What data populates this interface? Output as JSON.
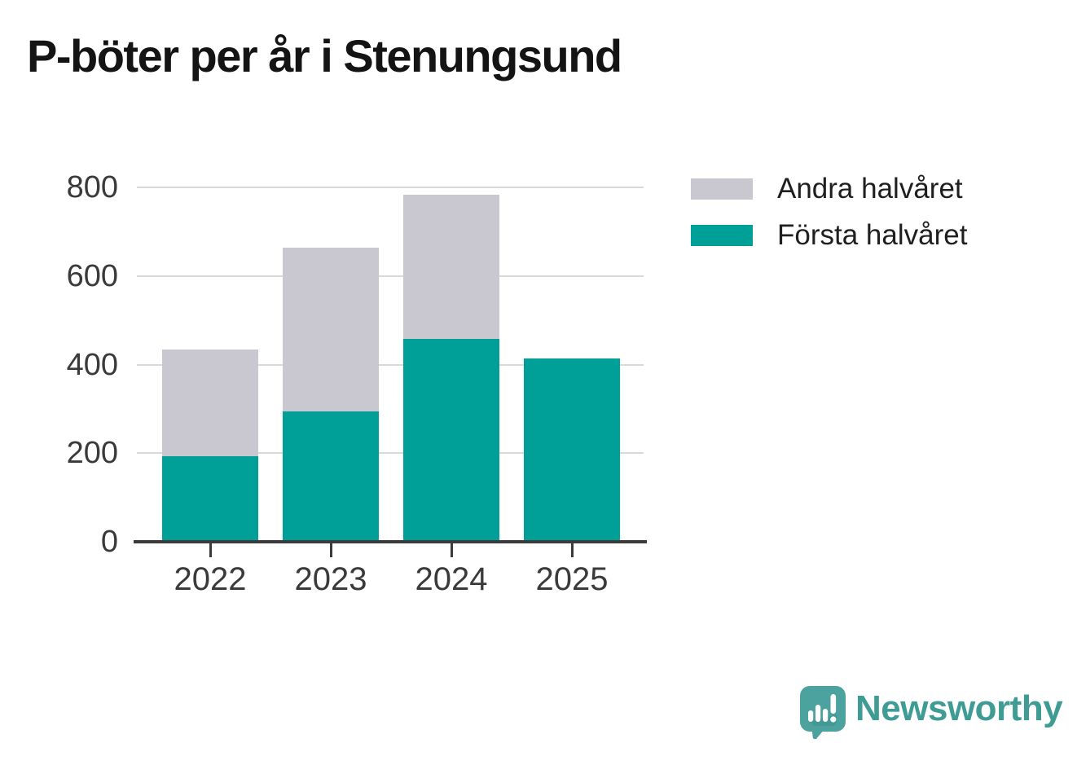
{
  "title": "P-böter per år i Stenungsund",
  "colors": {
    "first_half": "#00a099",
    "second_half": "#c9c7d0",
    "axis": "#3b3b3b",
    "grid": "#d9d9d9",
    "tick_label": "#3a3a3a",
    "title": "#141414",
    "legend_text": "#1f1f1f",
    "brand_teal": "#3e9c94",
    "brand_bubble": "#4ca29e"
  },
  "legend": {
    "items": [
      {
        "label": "Andra halvåret",
        "series": "Andra halvåret"
      },
      {
        "label": "Första halvåret",
        "series": "Första halvåret"
      }
    ]
  },
  "chart_data": {
    "type": "bar",
    "stacked": true,
    "title": "P-böter per år i Stenungsund",
    "categories": [
      "2022",
      "2023",
      "2024",
      "2025"
    ],
    "series": [
      {
        "name": "Första halvåret",
        "color": "#00a099",
        "values": [
          190,
          290,
          455,
          410
        ]
      },
      {
        "name": "Andra halvåret",
        "color": "#c9c7d0",
        "values": [
          240,
          370,
          325,
          0
        ]
      }
    ],
    "totals": [
      430,
      660,
      780,
      410
    ],
    "xlabel": "",
    "ylabel": "",
    "ylim": [
      0,
      800
    ],
    "yticks": [
      0,
      200,
      400,
      600,
      800
    ],
    "grid": "horizontal",
    "legend_position": "right"
  },
  "brand": {
    "name": "Newsworthy",
    "icon": "newsworthy-logo-icon"
  }
}
